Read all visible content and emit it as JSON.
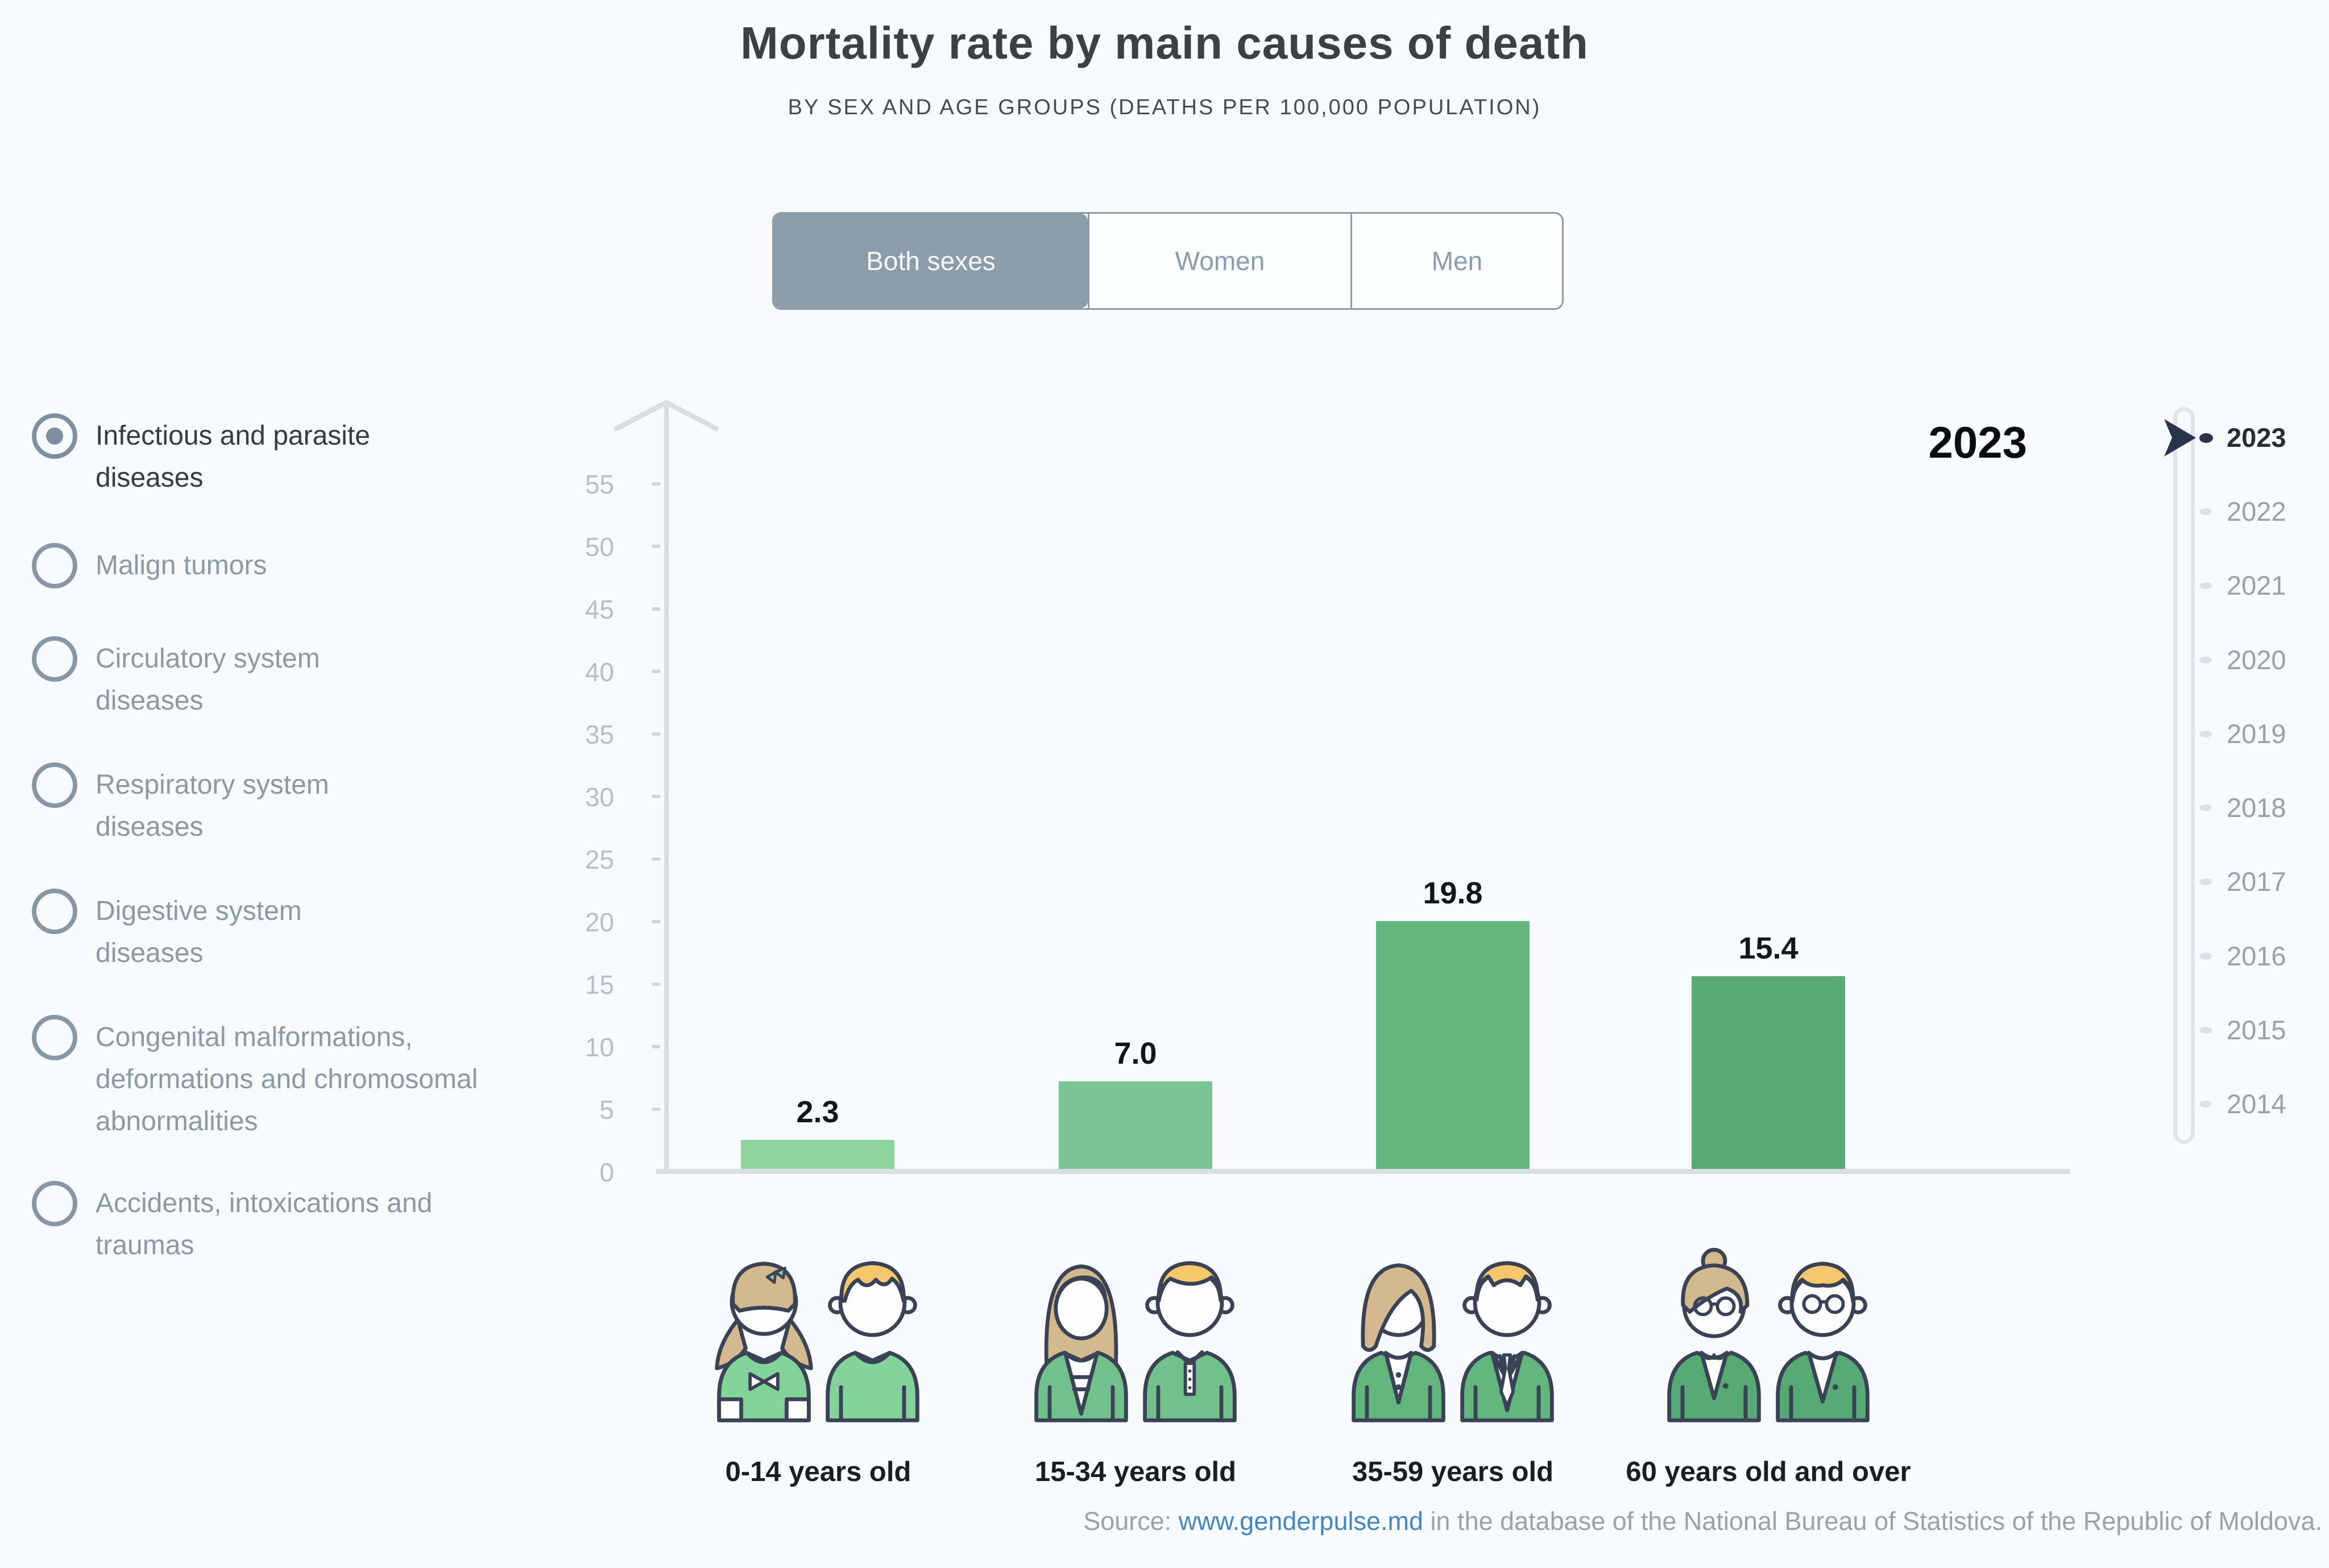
{
  "header": {
    "title": "Mortality rate by main causes of death",
    "subtitle": "BY SEX AND AGE GROUPS (DEATHS PER 100,000 POPULATION)"
  },
  "sex_tabs": {
    "items": [
      {
        "label": "Both sexes",
        "selected": true
      },
      {
        "label": "Women",
        "selected": false
      },
      {
        "label": "Men",
        "selected": false
      }
    ]
  },
  "causes": {
    "items": [
      {
        "label": "Infectious and parasite\ndiseases",
        "selected": true
      },
      {
        "label": "Malign tumors",
        "selected": false
      },
      {
        "label": "Circulatory system\ndiseases",
        "selected": false
      },
      {
        "label": "Respiratory system\ndiseases",
        "selected": false
      },
      {
        "label": "Digestive system\ndiseases",
        "selected": false
      },
      {
        "label": "Congenital malformations,\ndeformations and chromosomal\nabnormalities",
        "selected": false
      },
      {
        "label": "Accidents, intoxications and\ntraumas",
        "selected": false
      }
    ]
  },
  "chart_data": {
    "type": "bar",
    "title": "Mortality rate by main causes of death",
    "subtitle": "BY SEX AND AGE GROUPS (DEATHS PER 100,000 POPULATION)",
    "selected_cause": "Infectious and parasite diseases",
    "selected_sex": "Both sexes",
    "year": "2023",
    "categories": [
      "0-14 years old",
      "15-34 years old",
      "35-59 years old",
      "60 years old and over"
    ],
    "values": [
      2.3,
      7.0,
      19.8,
      15.4
    ],
    "value_labels": [
      "2.3",
      "7.0",
      "19.8",
      "15.4"
    ],
    "bar_colors": [
      "#8dd49e",
      "#7cc493",
      "#63b77e",
      "#57aa73"
    ],
    "ylim": [
      0,
      55
    ],
    "yticks": [
      "0",
      "5",
      "10",
      "15",
      "20",
      "25",
      "30",
      "35",
      "40",
      "45",
      "50",
      "55"
    ],
    "grid": false,
    "legend": null,
    "unit": "deaths per 100,000 population"
  },
  "timeline": {
    "selected": "2023",
    "years": [
      "2023",
      "2022",
      "2021",
      "2020",
      "2019",
      "2018",
      "2017",
      "2016",
      "2015",
      "2014"
    ]
  },
  "people_groups": [
    {
      "label": "0-14 years old",
      "icons": [
        "girl-child-icon",
        "boy-child-icon"
      ]
    },
    {
      "label": "15-34 years old",
      "icons": [
        "young-woman-icon",
        "young-man-icon"
      ]
    },
    {
      "label": "35-59 years old",
      "icons": [
        "middle-aged-woman-icon",
        "middle-aged-man-icon"
      ]
    },
    {
      "label": "60 years old and over",
      "icons": [
        "elderly-woman-icon",
        "elderly-man-icon"
      ]
    }
  ],
  "footer": {
    "source_prefix": "Source: ",
    "link_text": "www.genderpulse.md",
    "source_suffix": " in the database of the National Bureau of Statistics of the Republic of Moldova."
  },
  "colors": {
    "accent_slate": "#8b9dab",
    "axis": "#d9dee5",
    "tick_label": "#b5bec9",
    "selected_text": "#363b42",
    "muted_text": "#8b99a7",
    "timeline_marker": "#273449",
    "link_blue": "#4288c0"
  }
}
